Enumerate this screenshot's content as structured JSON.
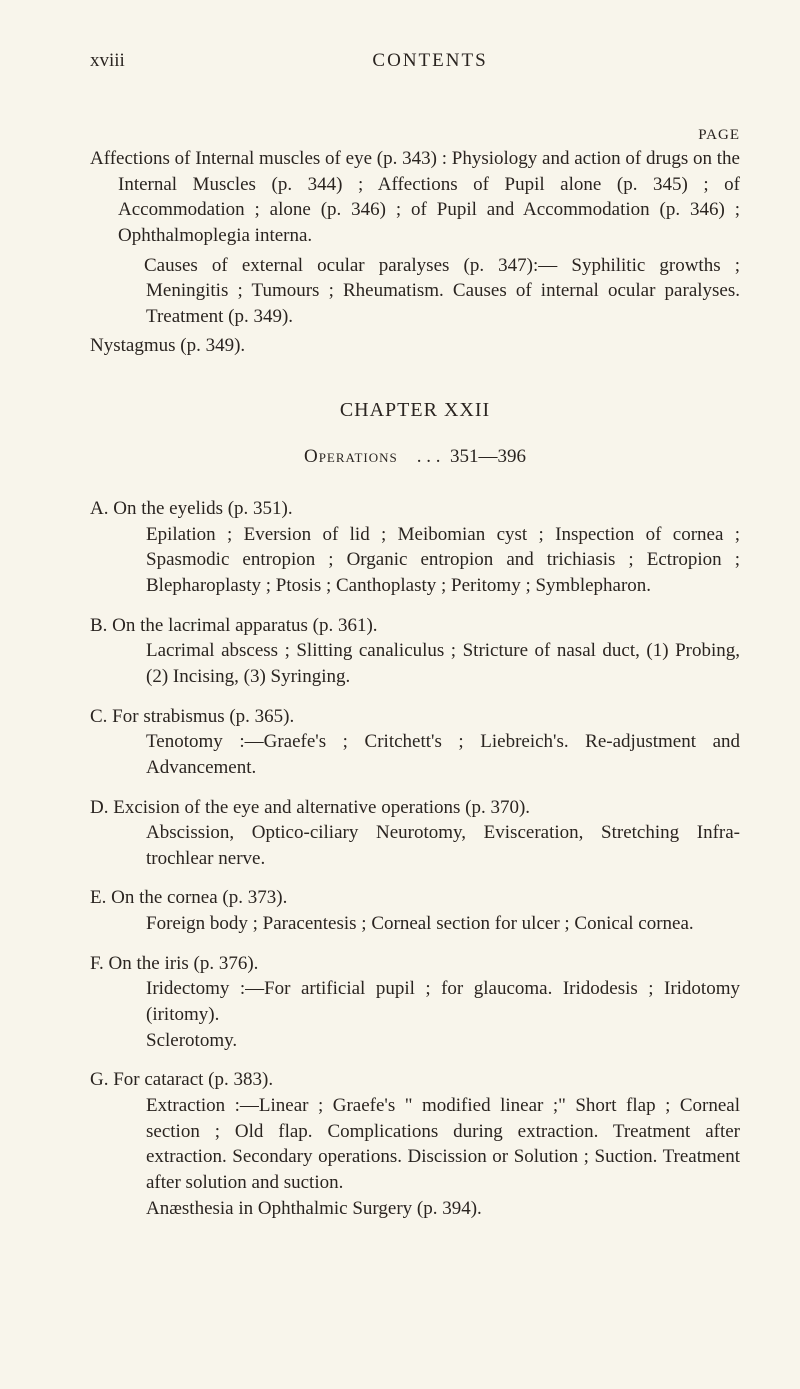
{
  "header": {
    "page_number": "xviii",
    "title": "CONTENTS",
    "page_label": "PAGE"
  },
  "block1": {
    "p1": "Affections of Internal muscles of eye (p. 343) : Physiology and action of drugs on the Internal Muscles (p. 344) ; Affections of Pupil alone (p. 345) ; of Accommodation ; alone (p. 346) ; of Pupil and Accommodation (p. 346) ; Ophthalmoplegia interna.",
    "p2": "Causes of external ocular paralyses (p. 347):— Syphilitic growths ; Meningitis ; Tumours ; Rheumatism. Causes of internal ocular paralyses. Treatment (p. 349).",
    "p3": "Nystagmus (p. 349)."
  },
  "chapter": {
    "title": "CHAPTER XXII",
    "ops_label": "Operations",
    "dots": ".     .     .",
    "range": "351—396"
  },
  "sections": {
    "A": {
      "head": "A. On the eyelids (p. 351).",
      "body": "Epilation ; Eversion of lid ; Meibomian cyst ; Inspection of cornea ; Spasmodic entropion ; Organic entropion and trichiasis ; Ectropion ; Blepharoplasty ; Ptosis ; Canthoplasty ; Peritomy ; Symblepharon."
    },
    "B": {
      "head": "B. On the lacrimal apparatus (p. 361).",
      "body": "Lacrimal abscess ; Slitting canaliculus ; Stricture of nasal duct, (1) Probing, (2) Incising, (3) Syringing."
    },
    "C": {
      "head": "C. For strabismus (p. 365).",
      "body": "Tenotomy :—Graefe's ; Critchett's ; Liebreich's. Re-adjustment and Advancement."
    },
    "D": {
      "head": "D. Excision of the eye and alternative operations (p. 370).",
      "body": "Abscission, Optico-ciliary Neurotomy, Evisceration, Stretching Infra-trochlear nerve."
    },
    "E": {
      "head": "E. On the cornea (p. 373).",
      "body": "Foreign body ; Paracentesis ; Corneal section for ulcer ; Conical cornea."
    },
    "F": {
      "head": "F. On the iris (p. 376).",
      "body1": "Iridectomy :—For artificial pupil ; for glaucoma. Iridodesis ; Iridotomy (iritomy).",
      "body2": "Sclerotomy."
    },
    "G": {
      "head": "G. For cataract (p. 383).",
      "body1": "Extraction :—Linear ; Graefe's \" modified linear ;\" Short flap ; Corneal section ; Old flap. Complications during extraction. Treatment after extraction. Secondary operations. Discission or Solution ; Suction. Treatment after solution and suction.",
      "body2": "Anæsthesia in Ophthalmic Surgery (p. 394)."
    }
  }
}
